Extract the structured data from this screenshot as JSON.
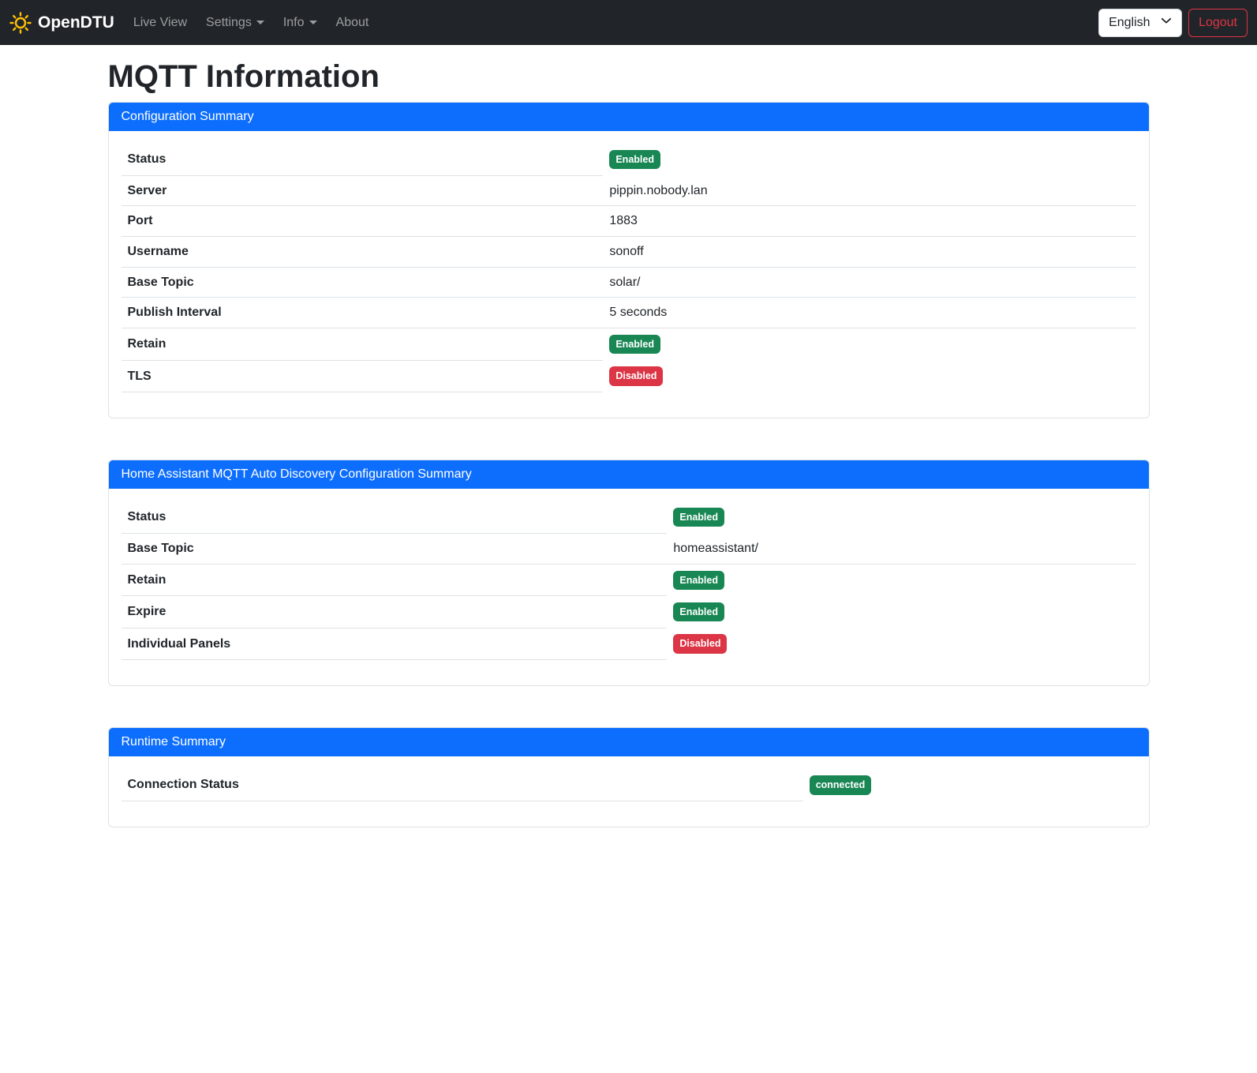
{
  "navbar": {
    "brand": "OpenDTU",
    "items": [
      {
        "label": "Live View",
        "dropdown": false
      },
      {
        "label": "Settings",
        "dropdown": true
      },
      {
        "label": "Info",
        "dropdown": true
      },
      {
        "label": "About",
        "dropdown": false
      }
    ],
    "language_selector": {
      "value": "English"
    },
    "logout_label": "Logout"
  },
  "page": {
    "title": "MQTT Information"
  },
  "cards": [
    {
      "header": "Configuration Summary",
      "label_col_pct": 47.5,
      "rows": [
        {
          "label": "Status",
          "type": "badge",
          "badge_text": "Enabled",
          "badge_variant": "success"
        },
        {
          "label": "Server",
          "type": "text",
          "value": "pippin.nobody.lan"
        },
        {
          "label": "Port",
          "type": "text",
          "value": "1883"
        },
        {
          "label": "Username",
          "type": "text",
          "value": "sonoff"
        },
        {
          "label": "Base Topic",
          "type": "text",
          "value": "solar/"
        },
        {
          "label": "Publish Interval",
          "type": "text",
          "value": "5 seconds"
        },
        {
          "label": "Retain",
          "type": "badge",
          "badge_text": "Enabled",
          "badge_variant": "success"
        },
        {
          "label": "TLS",
          "type": "badge",
          "badge_text": "Disabled",
          "badge_variant": "danger"
        }
      ]
    },
    {
      "header": "Home Assistant MQTT Auto Discovery Configuration Summary",
      "label_col_pct": 53.8,
      "rows": [
        {
          "label": "Status",
          "type": "badge",
          "badge_text": "Enabled",
          "badge_variant": "success"
        },
        {
          "label": "Base Topic",
          "type": "text",
          "value": "homeassistant/"
        },
        {
          "label": "Retain",
          "type": "badge",
          "badge_text": "Enabled",
          "badge_variant": "success"
        },
        {
          "label": "Expire",
          "type": "badge",
          "badge_text": "Enabled",
          "badge_variant": "success"
        },
        {
          "label": "Individual Panels",
          "type": "badge",
          "badge_text": "Disabled",
          "badge_variant": "danger"
        }
      ]
    },
    {
      "header": "Runtime Summary",
      "label_col_pct": 67.2,
      "rows": [
        {
          "label": "Connection Status",
          "type": "badge",
          "badge_text": "connected",
          "badge_variant": "success"
        }
      ]
    }
  ],
  "colors": {
    "primary": "#0d6efd",
    "success": "#198754",
    "danger": "#dc3545",
    "navbar_bg": "#212529",
    "brand_icon": "#ffc107"
  }
}
